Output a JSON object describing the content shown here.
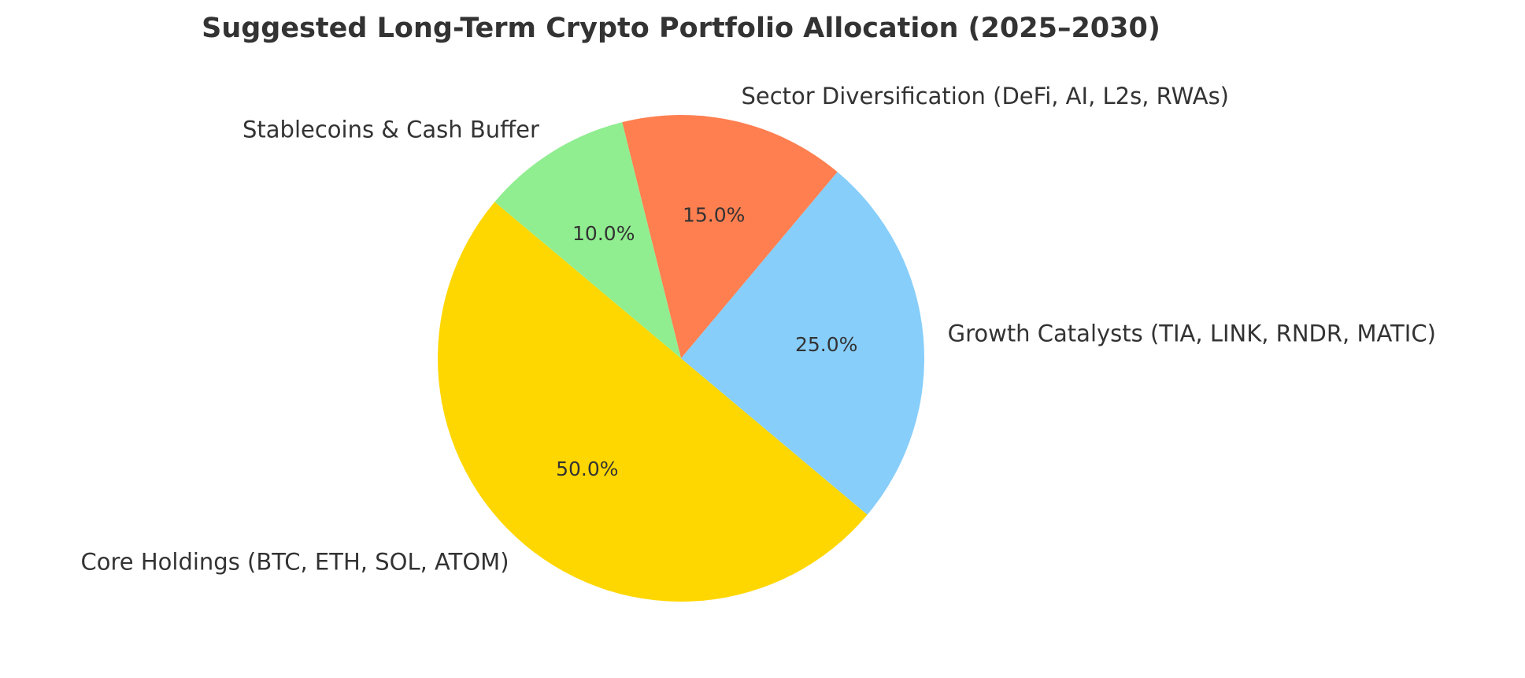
{
  "chart_data": {
    "type": "pie",
    "title": "Suggested Long-Term Crypto Portfolio Allocation (2025–2030)",
    "categories": [
      "Core Holdings (BTC, ETH, SOL, ATOM)",
      "Growth Catalysts (TIA, LINK, RNDR, MATIC)",
      "Sector Diversification (DeFi, AI, L2s, RWAs)",
      "Stablecoins & Cash Buffer"
    ],
    "values": [
      50,
      25,
      15,
      10
    ],
    "value_labels": [
      "50.0%",
      "25.0%",
      "15.0%",
      "10.0%"
    ],
    "colors": [
      "#ffd700",
      "#87cefa",
      "#ff7f50",
      "#90ee90"
    ],
    "start_angle": 140
  }
}
